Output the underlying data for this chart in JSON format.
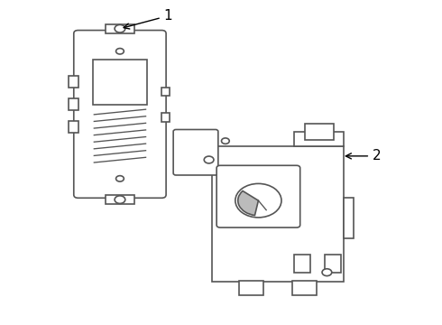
{
  "background_color": "#ffffff",
  "line_color": "#555555",
  "line_width": 1.2,
  "label1": "1",
  "label2": "2",
  "figsize": [
    4.9,
    3.6
  ],
  "dpi": 100
}
